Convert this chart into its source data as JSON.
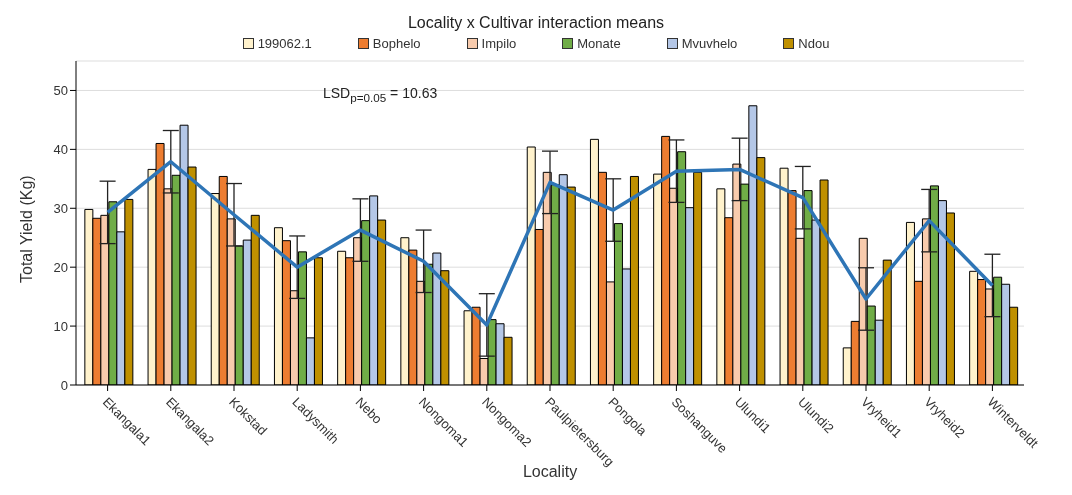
{
  "chart_data": {
    "type": "bar",
    "title": "Locality x Cultivar interaction means",
    "xlabel": "Locality",
    "ylabel": "Total Yield (Kg)",
    "categories": [
      "Ekangala1",
      "Ekangala2",
      "Kokstad",
      "Ladysmith",
      "Nebo",
      "Nongoma1",
      "Nongoma2",
      "Paulpietersburg",
      "Pongola",
      "Soshanguve",
      "Ulundi1",
      "Ulundi2",
      "Vryheid1",
      "Vryheid2",
      "Winterveldt"
    ],
    "series": [
      {
        "name": "199062.1",
        "color": "#fff2cc",
        "values": [
          29.8,
          36.6,
          32.5,
          26.7,
          22.7,
          25.0,
          12.6,
          40.4,
          41.7,
          35.8,
          33.3,
          36.8,
          6.3,
          27.6,
          19.3
        ]
      },
      {
        "name": "Bophelo",
        "color": "#ed7d31",
        "values": [
          28.3,
          41.0,
          35.4,
          24.5,
          21.6,
          22.9,
          13.2,
          26.4,
          36.1,
          42.2,
          28.4,
          33.0,
          10.8,
          17.6,
          17.9
        ]
      },
      {
        "name": "Impilo",
        "color": "#f8cbad",
        "values": [
          28.8,
          33.3,
          28.2,
          16.0,
          25.0,
          17.6,
          4.5,
          36.1,
          17.5,
          33.4,
          37.5,
          24.9,
          24.9,
          28.2,
          16.3
        ]
      },
      {
        "name": "Monate",
        "color": "#70ad47",
        "values": [
          31.1,
          35.6,
          23.6,
          22.6,
          27.9,
          20.5,
          11.1,
          34.0,
          27.4,
          39.6,
          34.1,
          33.0,
          13.4,
          33.8,
          18.3
        ]
      },
      {
        "name": "Mvuvhelo",
        "color": "#b4c7e7",
        "values": [
          26.0,
          44.1,
          24.6,
          8.0,
          32.1,
          22.4,
          10.4,
          35.7,
          19.7,
          30.1,
          47.4,
          28.0,
          11.0,
          31.3,
          17.1
        ]
      },
      {
        "name": "Ndou",
        "color": "#bf9000",
        "values": [
          31.5,
          37.0,
          28.8,
          21.6,
          28.0,
          19.4,
          8.1,
          33.6,
          35.4,
          36.1,
          38.6,
          34.8,
          21.2,
          29.2,
          13.2
        ]
      },
      {
        "type": "line",
        "color": "#2e75b6",
        "values": [
          29.3,
          37.9,
          28.9,
          20.0,
          26.3,
          21.0,
          10.2,
          34.4,
          29.7,
          36.3,
          36.6,
          31.8,
          14.6,
          27.9,
          16.9
        ],
        "errors": [
          5.3,
          5.3,
          5.3,
          5.3,
          5.3,
          5.3,
          5.3,
          5.3,
          5.3,
          5.3,
          5.3,
          5.3,
          5.3,
          5.3,
          5.3
        ]
      }
    ],
    "ylim": [
      0,
      55
    ],
    "yticks": [
      0,
      10,
      20,
      30,
      40,
      50
    ],
    "grid": "y",
    "legend": "top",
    "marker": "none",
    "line_style": "solid",
    "annotations": [
      "LSD$_{p=0.05}$ = 10.63"
    ]
  }
}
